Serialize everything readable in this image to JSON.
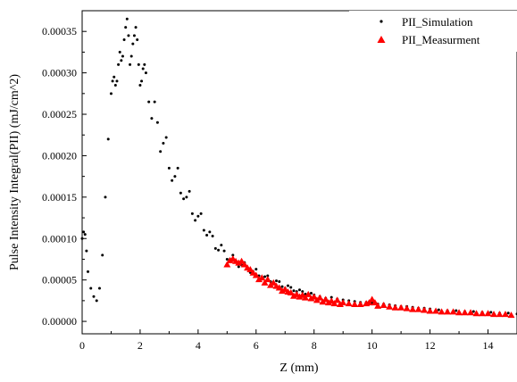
{
  "chart_data": {
    "type": "scatter",
    "title": "",
    "xlabel": "Z (mm)",
    "ylabel": "Pulse Intensity Integral(PII) (mJ/cm^2)",
    "xlim": [
      0,
      15
    ],
    "ylim": [
      -1.5e-05,
      0.000375
    ],
    "x_ticks": [
      0,
      2,
      4,
      6,
      8,
      10,
      12,
      14
    ],
    "x_tick_labels": [
      "0",
      "2",
      "4",
      "6",
      "8",
      "10",
      "12",
      "14"
    ],
    "y_ticks": [
      0,
      5e-05,
      0.0001,
      0.00015,
      0.0002,
      0.00025,
      0.0003,
      0.00035
    ],
    "y_tick_labels": [
      "0.00000",
      "0.00005",
      "0.00010",
      "0.00015",
      "0.00020",
      "0.00025",
      "0.00030",
      "0.00035"
    ],
    "grid": false,
    "legend_position": "top-right",
    "series": [
      {
        "name": "PII_Simulation",
        "marker": "dot",
        "color": "#000000",
        "x": [
          0.0,
          0.05,
          0.1,
          0.15,
          0.2,
          0.3,
          0.4,
          0.5,
          0.6,
          0.7,
          0.8,
          0.9,
          1.0,
          1.05,
          1.1,
          1.15,
          1.2,
          1.25,
          1.3,
          1.35,
          1.4,
          1.45,
          1.5,
          1.55,
          1.6,
          1.65,
          1.7,
          1.75,
          1.8,
          1.85,
          1.9,
          1.95,
          2.0,
          2.05,
          2.1,
          2.15,
          2.2,
          2.3,
          2.4,
          2.5,
          2.6,
          2.7,
          2.8,
          2.9,
          3.0,
          3.1,
          3.2,
          3.3,
          3.4,
          3.5,
          3.6,
          3.7,
          3.8,
          3.9,
          4.0,
          4.1,
          4.2,
          4.3,
          4.4,
          4.5,
          4.6,
          4.7,
          4.8,
          4.9,
          5.0,
          5.1,
          5.2,
          5.3,
          5.4,
          5.5,
          5.6,
          5.7,
          5.8,
          5.9,
          6.0,
          6.1,
          6.2,
          6.3,
          6.4,
          6.5,
          6.6,
          6.7,
          6.8,
          6.9,
          7.0,
          7.1,
          7.2,
          7.3,
          7.4,
          7.5,
          7.6,
          7.7,
          7.8,
          7.9,
          8.0,
          8.2,
          8.4,
          8.6,
          8.8,
          9.0,
          9.2,
          9.4,
          9.6,
          9.8,
          10.0,
          10.2,
          10.4,
          10.6,
          10.8,
          11.0,
          11.2,
          11.4,
          11.6,
          11.8,
          12.0,
          12.3,
          12.6,
          12.9,
          13.2,
          13.5,
          13.8,
          14.1,
          14.4,
          14.7,
          15.0
        ],
        "y": [
          0.0001,
          0.000108,
          0.000105,
          8.5e-05,
          6e-05,
          4e-05,
          3e-05,
          2.5e-05,
          4e-05,
          8e-05,
          0.00015,
          0.00022,
          0.000275,
          0.00029,
          0.000295,
          0.000285,
          0.00029,
          0.00031,
          0.000325,
          0.000315,
          0.00032,
          0.00034,
          0.000355,
          0.000365,
          0.000345,
          0.00031,
          0.00032,
          0.000335,
          0.000345,
          0.000355,
          0.00034,
          0.00031,
          0.000285,
          0.00029,
          0.000305,
          0.00031,
          0.0003,
          0.000265,
          0.000245,
          0.000265,
          0.00024,
          0.000205,
          0.000215,
          0.000222,
          0.000185,
          0.00017,
          0.000175,
          0.000185,
          0.000155,
          0.000148,
          0.00015,
          0.000157,
          0.00013,
          0.000122,
          0.000127,
          0.00013,
          0.00011,
          0.000104,
          0.000108,
          0.000103,
          8.8e-05,
          8.6e-05,
          9.2e-05,
          8.5e-05,
          7.5e-05,
          7.5e-05,
          8e-05,
          7.3e-05,
          6.6e-05,
          6.8e-05,
          7.1e-05,
          6.3e-05,
          5.9e-05,
          6e-05,
          6.3e-05,
          5.5e-05,
          5.2e-05,
          5.4e-05,
          5.5e-05,
          4.8e-05,
          4.6e-05,
          4.9e-05,
          4.8e-05,
          4.2e-05,
          4e-05,
          4.3e-05,
          4.1e-05,
          3.7e-05,
          3.6e-05,
          3.8e-05,
          3.6e-05,
          3.3e-05,
          3.2e-05,
          3.4e-05,
          3.2e-05,
          3e-05,
          2.8e-05,
          2.9e-05,
          2.7e-05,
          2.6e-05,
          2.5e-05,
          2.4e-05,
          2.3e-05,
          2.3e-05,
          2.2e-05,
          2.1e-05,
          2.1e-05,
          2e-05,
          1.9e-05,
          1.8e-05,
          1.8e-05,
          1.7e-05,
          1.6e-05,
          1.6e-05,
          1.5e-05,
          1.4e-05,
          1.3e-05,
          1.3e-05,
          1.2e-05,
          1.2e-05,
          1.1e-05,
          1.1e-05,
          1e-05,
          1e-05,
          9e-06
        ]
      },
      {
        "name": "PII_Measurment",
        "marker": "triangle",
        "color": "#ff0000",
        "x": [
          5.0,
          5.1,
          5.2,
          5.3,
          5.4,
          5.5,
          5.6,
          5.7,
          5.8,
          5.9,
          6.0,
          6.1,
          6.2,
          6.3,
          6.4,
          6.5,
          6.6,
          6.7,
          6.8,
          6.9,
          7.0,
          7.1,
          7.2,
          7.3,
          7.4,
          7.5,
          7.6,
          7.7,
          7.8,
          7.9,
          8.0,
          8.1,
          8.2,
          8.3,
          8.4,
          8.5,
          8.6,
          8.7,
          8.8,
          8.9,
          9.0,
          9.2,
          9.4,
          9.6,
          9.8,
          9.9,
          10.0,
          10.1,
          10.2,
          10.4,
          10.6,
          10.8,
          11.0,
          11.2,
          11.4,
          11.6,
          11.8,
          12.0,
          12.2,
          12.4,
          12.6,
          12.8,
          13.0,
          13.2,
          13.4,
          13.6,
          13.8,
          14.0,
          14.2,
          14.4,
          14.6,
          14.8
        ],
        "y": [
          6.8e-05,
          7.3e-05,
          7.5e-05,
          7.2e-05,
          7e-05,
          7.2e-05,
          6.8e-05,
          6.4e-05,
          6.2e-05,
          5.8e-05,
          5.5e-05,
          5e-05,
          5.2e-05,
          4.6e-05,
          5e-05,
          4.3e-05,
          4.6e-05,
          4.2e-05,
          4e-05,
          3.6e-05,
          3.8e-05,
          3.5e-05,
          3.4e-05,
          3e-05,
          3.2e-05,
          2.9e-05,
          3.1e-05,
          2.8e-05,
          3.2e-05,
          2.7e-05,
          2.9e-05,
          2.5e-05,
          2.8e-05,
          2.3e-05,
          2.6e-05,
          2.2e-05,
          2.4e-05,
          2.1e-05,
          2.5e-05,
          2e-05,
          2.2e-05,
          2.1e-05,
          2e-05,
          2e-05,
          2.1e-05,
          2.2e-05,
          2.6e-05,
          2.2e-05,
          1.8e-05,
          1.9e-05,
          1.7e-05,
          1.6e-05,
          1.6e-05,
          1.5e-05,
          1.4e-05,
          1.4e-05,
          1.3e-05,
          1.2e-05,
          1.2e-05,
          1.1e-05,
          1.1e-05,
          1.1e-05,
          1e-05,
          1e-05,
          1e-05,
          9e-06,
          9e-06,
          9e-06,
          8e-06,
          8e-06,
          8e-06,
          7e-06
        ]
      }
    ]
  }
}
